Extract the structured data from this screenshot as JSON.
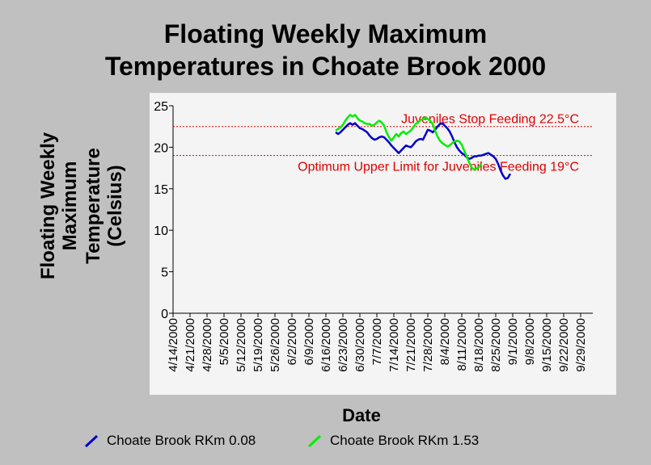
{
  "chart_data": {
    "type": "line",
    "title": "Floating Weekly Maximum Temperatures in Choate Brook 2000",
    "title_lines": [
      "Floating Weekly Maximum",
      "Temperatures in Choate Brook 2000"
    ],
    "xlabel": "Date",
    "ylabel_lines": [
      "Floating Weekly",
      "Maximum",
      "Temperature",
      "(Celsius)"
    ],
    "ylim": [
      0,
      25
    ],
    "yticks": [
      "0",
      "5",
      "10",
      "15",
      "20",
      "25"
    ],
    "x_tick_labels": [
      "4/14/2000",
      "4/21/2000",
      "4/28/2000",
      "5/5/2000",
      "5/12/2000",
      "5/19/2000",
      "5/26/2000",
      "6/2/2000",
      "6/9/2000",
      "6/16/2000",
      "6/23/2000",
      "6/30/2000",
      "7/7/2000",
      "7/14/2000",
      "7/21/2000",
      "7/28/2000",
      "8/4/2000",
      "8/11/2000",
      "8/18/2000",
      "8/25/2000",
      "9/1/2000",
      "9/8/2000",
      "9/15/2000",
      "9/22/2000",
      "9/29/2000"
    ],
    "xlim": [
      "4/14/2000",
      "10/4/2000"
    ],
    "grid": false,
    "legend_position": "bottom",
    "reference_lines": [
      {
        "label": "Juveniles Stop Feeding 22.5°C",
        "value": 22.5,
        "color": "#e00000"
      },
      {
        "label": "Optimum Upper Limit for Juveniles Feeding 19°C",
        "value": 19,
        "color": "#e00000"
      }
    ],
    "series": [
      {
        "name": "Choate Brook RKm 0.08",
        "color": "#0000cc",
        "points": [
          [
            "6/20/2000",
            21.8
          ],
          [
            "6/21/2000",
            21.6
          ],
          [
            "6/22/2000",
            21.8
          ],
          [
            "6/23/2000",
            22.1
          ],
          [
            "6/24/2000",
            22.4
          ],
          [
            "6/25/2000",
            22.7
          ],
          [
            "6/26/2000",
            22.9
          ],
          [
            "6/27/2000",
            22.7
          ],
          [
            "6/28/2000",
            22.9
          ],
          [
            "6/29/2000",
            22.6
          ],
          [
            "6/30/2000",
            22.3
          ],
          [
            "7/1/2000",
            22.2
          ],
          [
            "7/2/2000",
            22.0
          ],
          [
            "7/3/2000",
            21.8
          ],
          [
            "7/4/2000",
            21.4
          ],
          [
            "7/5/2000",
            21.1
          ],
          [
            "7/6/2000",
            20.9
          ],
          [
            "7/7/2000",
            21.0
          ],
          [
            "7/8/2000",
            21.2
          ],
          [
            "7/9/2000",
            21.3
          ],
          [
            "7/10/2000",
            21.2
          ],
          [
            "7/11/2000",
            20.9
          ],
          [
            "7/12/2000",
            20.6
          ],
          [
            "7/13/2000",
            20.2
          ],
          [
            "7/14/2000",
            19.9
          ],
          [
            "7/15/2000",
            19.6
          ],
          [
            "7/16/2000",
            19.3
          ],
          [
            "7/17/2000",
            19.6
          ],
          [
            "7/18/2000",
            19.9
          ],
          [
            "7/19/2000",
            20.2
          ],
          [
            "7/20/2000",
            20.1
          ],
          [
            "7/21/2000",
            20.0
          ],
          [
            "7/22/2000",
            20.3
          ],
          [
            "7/23/2000",
            20.7
          ],
          [
            "7/24/2000",
            20.9
          ],
          [
            "7/25/2000",
            21.0
          ],
          [
            "7/26/2000",
            20.9
          ],
          [
            "7/27/2000",
            21.5
          ],
          [
            "7/28/2000",
            22.1
          ],
          [
            "7/29/2000",
            22.0
          ],
          [
            "7/30/2000",
            21.8
          ],
          [
            "7/31/2000",
            22.1
          ],
          [
            "8/1/2000",
            22.5
          ],
          [
            "8/2/2000",
            22.8
          ],
          [
            "8/3/2000",
            22.9
          ],
          [
            "8/4/2000",
            22.6
          ],
          [
            "8/5/2000",
            22.3
          ],
          [
            "8/6/2000",
            21.9
          ],
          [
            "8/7/2000",
            21.3
          ],
          [
            "8/8/2000",
            20.6
          ],
          [
            "8/9/2000",
            20.0
          ],
          [
            "8/10/2000",
            19.6
          ],
          [
            "8/11/2000",
            19.3
          ],
          [
            "8/12/2000",
            19.1
          ],
          [
            "8/13/2000",
            18.8
          ],
          [
            "8/14/2000",
            18.6
          ],
          [
            "8/15/2000",
            18.7
          ],
          [
            "8/16/2000",
            18.9
          ],
          [
            "8/17/2000",
            18.9
          ],
          [
            "8/18/2000",
            19.0
          ],
          [
            "8/19/2000",
            19.0
          ],
          [
            "8/20/2000",
            19.1
          ],
          [
            "8/21/2000",
            19.2
          ],
          [
            "8/22/2000",
            19.3
          ],
          [
            "8/23/2000",
            19.1
          ],
          [
            "8/24/2000",
            18.9
          ],
          [
            "8/25/2000",
            18.6
          ],
          [
            "8/26/2000",
            18.0
          ],
          [
            "8/27/2000",
            17.2
          ],
          [
            "8/28/2000",
            16.6
          ],
          [
            "8/29/2000",
            16.2
          ],
          [
            "8/30/2000",
            16.3
          ],
          [
            "8/31/2000",
            16.8
          ]
        ]
      },
      {
        "name": "Choate Brook RKm 1.53",
        "color": "#00ee00",
        "points": [
          [
            "6/20/2000",
            22.0
          ],
          [
            "6/21/2000",
            22.2
          ],
          [
            "6/22/2000",
            22.4
          ],
          [
            "6/23/2000",
            22.7
          ],
          [
            "6/24/2000",
            23.2
          ],
          [
            "6/25/2000",
            23.6
          ],
          [
            "6/26/2000",
            23.9
          ],
          [
            "6/27/2000",
            23.7
          ],
          [
            "6/28/2000",
            23.9
          ],
          [
            "6/29/2000",
            23.5
          ],
          [
            "6/30/2000",
            23.2
          ],
          [
            "7/1/2000",
            23.1
          ],
          [
            "7/2/2000",
            22.9
          ],
          [
            "7/3/2000",
            22.8
          ],
          [
            "7/4/2000",
            22.8
          ],
          [
            "7/5/2000",
            22.6
          ],
          [
            "7/6/2000",
            22.7
          ],
          [
            "7/7/2000",
            23.0
          ],
          [
            "7/8/2000",
            23.2
          ],
          [
            "7/9/2000",
            23.0
          ],
          [
            "7/10/2000",
            22.6
          ],
          [
            "7/11/2000",
            21.8
          ],
          [
            "7/12/2000",
            21.2
          ],
          [
            "7/13/2000",
            20.8
          ],
          [
            "7/14/2000",
            21.2
          ],
          [
            "7/15/2000",
            21.6
          ],
          [
            "7/16/2000",
            21.3
          ],
          [
            "7/17/2000",
            21.7
          ],
          [
            "7/18/2000",
            21.9
          ],
          [
            "7/19/2000",
            21.6
          ],
          [
            "7/20/2000",
            21.8
          ],
          [
            "7/21/2000",
            22.0
          ],
          [
            "7/22/2000",
            22.4
          ],
          [
            "7/23/2000",
            22.8
          ],
          [
            "7/24/2000",
            23.0
          ],
          [
            "7/25/2000",
            23.3
          ],
          [
            "7/26/2000",
            23.4
          ],
          [
            "7/27/2000",
            23.6
          ],
          [
            "7/28/2000",
            23.4
          ],
          [
            "7/29/2000",
            23.2
          ],
          [
            "7/30/2000",
            22.8
          ],
          [
            "7/31/2000",
            22.0
          ],
          [
            "8/1/2000",
            21.3
          ],
          [
            "8/2/2000",
            20.8
          ],
          [
            "8/3/2000",
            20.5
          ],
          [
            "8/4/2000",
            20.3
          ],
          [
            "8/5/2000",
            20.1
          ],
          [
            "8/6/2000",
            20.2
          ],
          [
            "8/7/2000",
            20.5
          ],
          [
            "8/8/2000",
            20.7
          ],
          [
            "8/9/2000",
            20.8
          ],
          [
            "8/10/2000",
            20.7
          ],
          [
            "8/11/2000",
            20.3
          ],
          [
            "8/12/2000",
            19.6
          ],
          [
            "8/13/2000",
            18.9
          ],
          [
            "8/14/2000",
            18.2
          ],
          [
            "8/15/2000",
            17.6
          ],
          [
            "8/16/2000",
            17.3
          ],
          [
            "8/17/2000",
            17.4
          ],
          [
            "8/18/2000",
            17.6
          ],
          [
            "8/19/2000",
            18.0
          ]
        ]
      }
    ]
  }
}
